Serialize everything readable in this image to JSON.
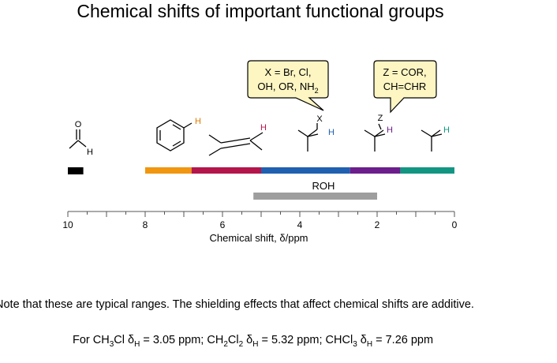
{
  "title": "Chemical shifts of important functional groups",
  "callouts": {
    "halide": {
      "line1": "X = Br, Cl,",
      "line2a": "OH, OR, NH",
      "line2_sub": "2"
    },
    "carbonyl": {
      "line1": "Z = COR,",
      "line2": "CH=CHR"
    }
  },
  "atom_labels": {
    "aldehyde_o": "O",
    "aldehyde_h": "H",
    "aromatic_h": "H",
    "alkene_h": "H",
    "halide_x": "X",
    "halide_h": "H",
    "carbonyl_z": "Z",
    "carbonyl_h": "H",
    "alkyl_h": "H"
  },
  "roh_label": "ROH",
  "ranges": [
    {
      "group": "aldehyde",
      "from": 9.6,
      "to": 10.0,
      "color": "#000000"
    },
    {
      "group": "aromatic",
      "from": 6.8,
      "to": 8.0,
      "color": "#f0960f"
    },
    {
      "group": "alkene",
      "from": 5.0,
      "to": 6.8,
      "color": "#b4164b"
    },
    {
      "group": "halide",
      "from": 2.7,
      "to": 5.0,
      "color": "#2060b0"
    },
    {
      "group": "carbonyl",
      "from": 1.4,
      "to": 2.7,
      "color": "#6c1e8c"
    },
    {
      "group": "alkyl",
      "from": 0.0,
      "to": 1.4,
      "color": "#129682"
    },
    {
      "group": "ROH",
      "from": 2.0,
      "to": 5.2,
      "color": "#9e9e9e"
    }
  ],
  "axis": {
    "label": "Chemical shift, δ/ppm",
    "min": 0,
    "max": 10,
    "ticks": [
      10,
      8,
      6,
      4,
      2,
      0
    ]
  },
  "note": "Note that these are typical ranges. The shielding effects that affect chemical shifts are additive.",
  "example": {
    "prefix": "For CH",
    "items": [
      {
        "f1": "For CH",
        "s1": "3",
        "f2": "Cl δ",
        "s2": "H",
        "value": " = 3.05 ppm; "
      },
      {
        "f1": "CH",
        "s1": "2",
        "f2": "Cl",
        "s1b": "2",
        "f3": " δ",
        "s2": "H",
        "value": " = 5.32 ppm; "
      },
      {
        "f1": "CHCl",
        "s1": "3",
        "f2": " δ",
        "s2": "H",
        "value": " = 7.26 ppm"
      }
    ]
  }
}
